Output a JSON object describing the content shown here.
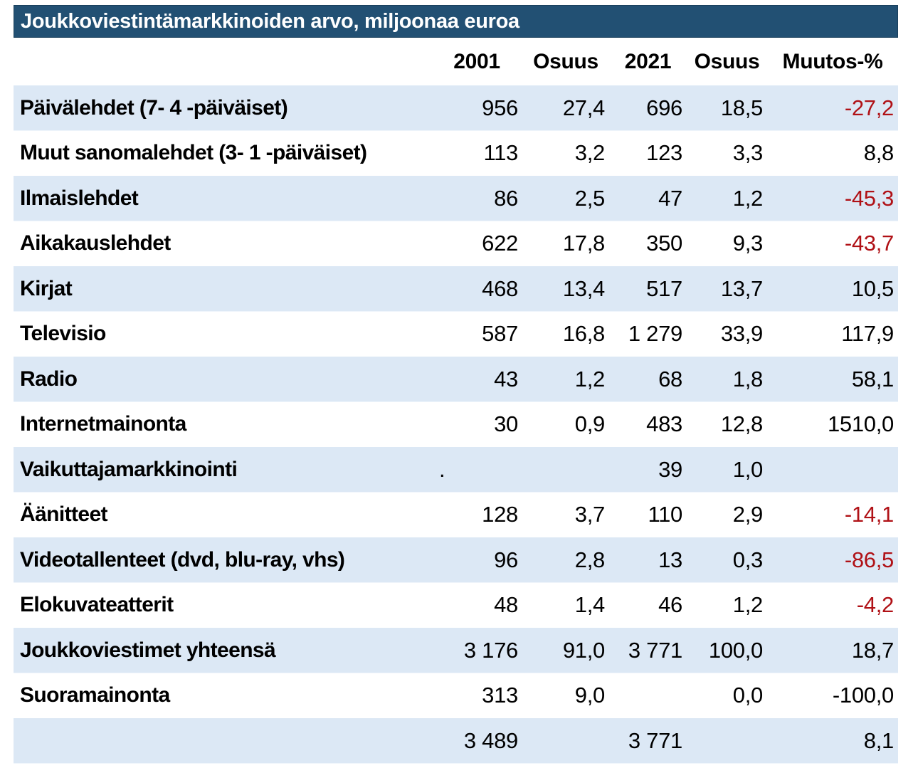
{
  "chart_data": {
    "type": "table",
    "title": "Joukkoviestintämarkkinoiden arvo, miljoonaa euroa",
    "columns": [
      "2001",
      "Osuus",
      "2021",
      "Osuus",
      "Muutos-%"
    ],
    "rows": [
      {
        "label": "Päivälehdet (7- 4 -päiväiset)",
        "v2001": "956",
        "osuus_2001": "27,4",
        "v2021": "696",
        "osuus_2021": "18,5",
        "muutos": "-27,2",
        "muutos_color": "#b01116"
      },
      {
        "label": "Muut sanomalehdet (3- 1 -päiväiset)",
        "v2001": "113",
        "osuus_2001": "3,2",
        "v2021": "123",
        "osuus_2021": "3,3",
        "muutos": "8,8",
        "muutos_color": "#000000"
      },
      {
        "label": "Ilmaislehdet",
        "v2001": "86",
        "osuus_2001": "2,5",
        "v2021": "47",
        "osuus_2021": "1,2",
        "muutos": "-45,3",
        "muutos_color": "#b01116"
      },
      {
        "label": "Aikakauslehdet",
        "v2001": "622",
        "osuus_2001": "17,8",
        "v2021": "350",
        "osuus_2021": "9,3",
        "muutos": "-43,7",
        "muutos_color": "#b01116"
      },
      {
        "label": "Kirjat",
        "v2001": "468",
        "osuus_2001": "13,4",
        "v2021": "517",
        "osuus_2021": "13,7",
        "muutos": "10,5",
        "muutos_color": "#000000"
      },
      {
        "label": "Televisio",
        "v2001": "587",
        "osuus_2001": "16,8",
        "v2021": "1 279",
        "osuus_2021": "33,9",
        "muutos": "117,9",
        "muutos_color": "#000000"
      },
      {
        "label": "Radio",
        "v2001": "43",
        "osuus_2001": "1,2",
        "v2021": "68",
        "osuus_2021": "1,8",
        "muutos": "58,1",
        "muutos_color": "#000000"
      },
      {
        "label": "Internetmainonta",
        "v2001": "30",
        "osuus_2001": "0,9",
        "v2021": "483",
        "osuus_2021": "12,8",
        "muutos": "1510,0",
        "muutos_color": "#000000"
      },
      {
        "label": "Vaikuttajamarkkinointi",
        "v2001": ".",
        "osuus_2001": "",
        "v2021": "39",
        "osuus_2021": "1,0",
        "muutos": "",
        "muutos_color": "#000000"
      },
      {
        "label": "Äänitteet",
        "v2001": "128",
        "osuus_2001": "3,7",
        "v2021": "110",
        "osuus_2021": "2,9",
        "muutos": "-14,1",
        "muutos_color": "#b01116"
      },
      {
        "label": "Videotallenteet (dvd, blu-ray, vhs)",
        "v2001": "96",
        "osuus_2001": "2,8",
        "v2021": "13",
        "osuus_2021": "0,3",
        "muutos": "-86,5",
        "muutos_color": "#b01116"
      },
      {
        "label": "Elokuvateatterit",
        "v2001": "48",
        "osuus_2001": "1,4",
        "v2021": "46",
        "osuus_2021": "1,2",
        "muutos": "-4,2",
        "muutos_color": "#b01116"
      },
      {
        "label": "Joukkoviestimet yhteensä",
        "v2001": "3 176",
        "osuus_2001": "91,0",
        "v2021": "3 771",
        "osuus_2021": "100,0",
        "muutos": "18,7",
        "muutos_color": "#000000"
      },
      {
        "label": "Suoramainonta",
        "v2001": "313",
        "osuus_2001": "9,0",
        "v2021": "",
        "osuus_2021": "0,0",
        "muutos": "-100,0",
        "muutos_color": "#000000"
      },
      {
        "label": "",
        "v2001": "3 489",
        "osuus_2001": "",
        "v2021": "3 771",
        "osuus_2021": "",
        "muutos": "8,1",
        "muutos_color": "#000000"
      }
    ]
  },
  "colors": {
    "title_bar_bg": "#225073",
    "row_alt_bg": "#dce8f5",
    "negative_red": "#b01116",
    "text": "#000000",
    "title_text": "#ffffff"
  }
}
